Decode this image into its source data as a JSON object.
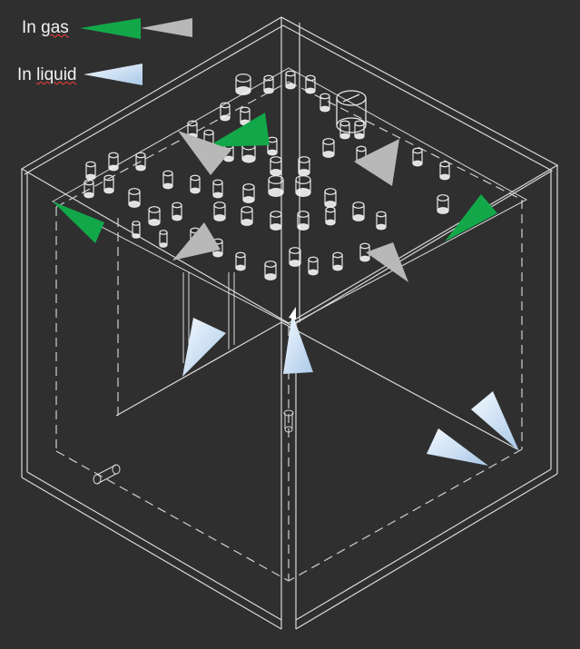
{
  "legend": {
    "gas": {
      "label_prefix": "In ",
      "label_word": "gas"
    },
    "liquid": {
      "label_prefix": "In ",
      "label_word": "liquid"
    }
  },
  "colors": {
    "background": "#2f2f2f",
    "structure": "#d9d9d9",
    "gas_green": "#12a84a",
    "gas_gray": "#b8b8b8",
    "liquid_blue": "#b7d4ef",
    "spellcheck_red": "#ff3b3b"
  }
}
